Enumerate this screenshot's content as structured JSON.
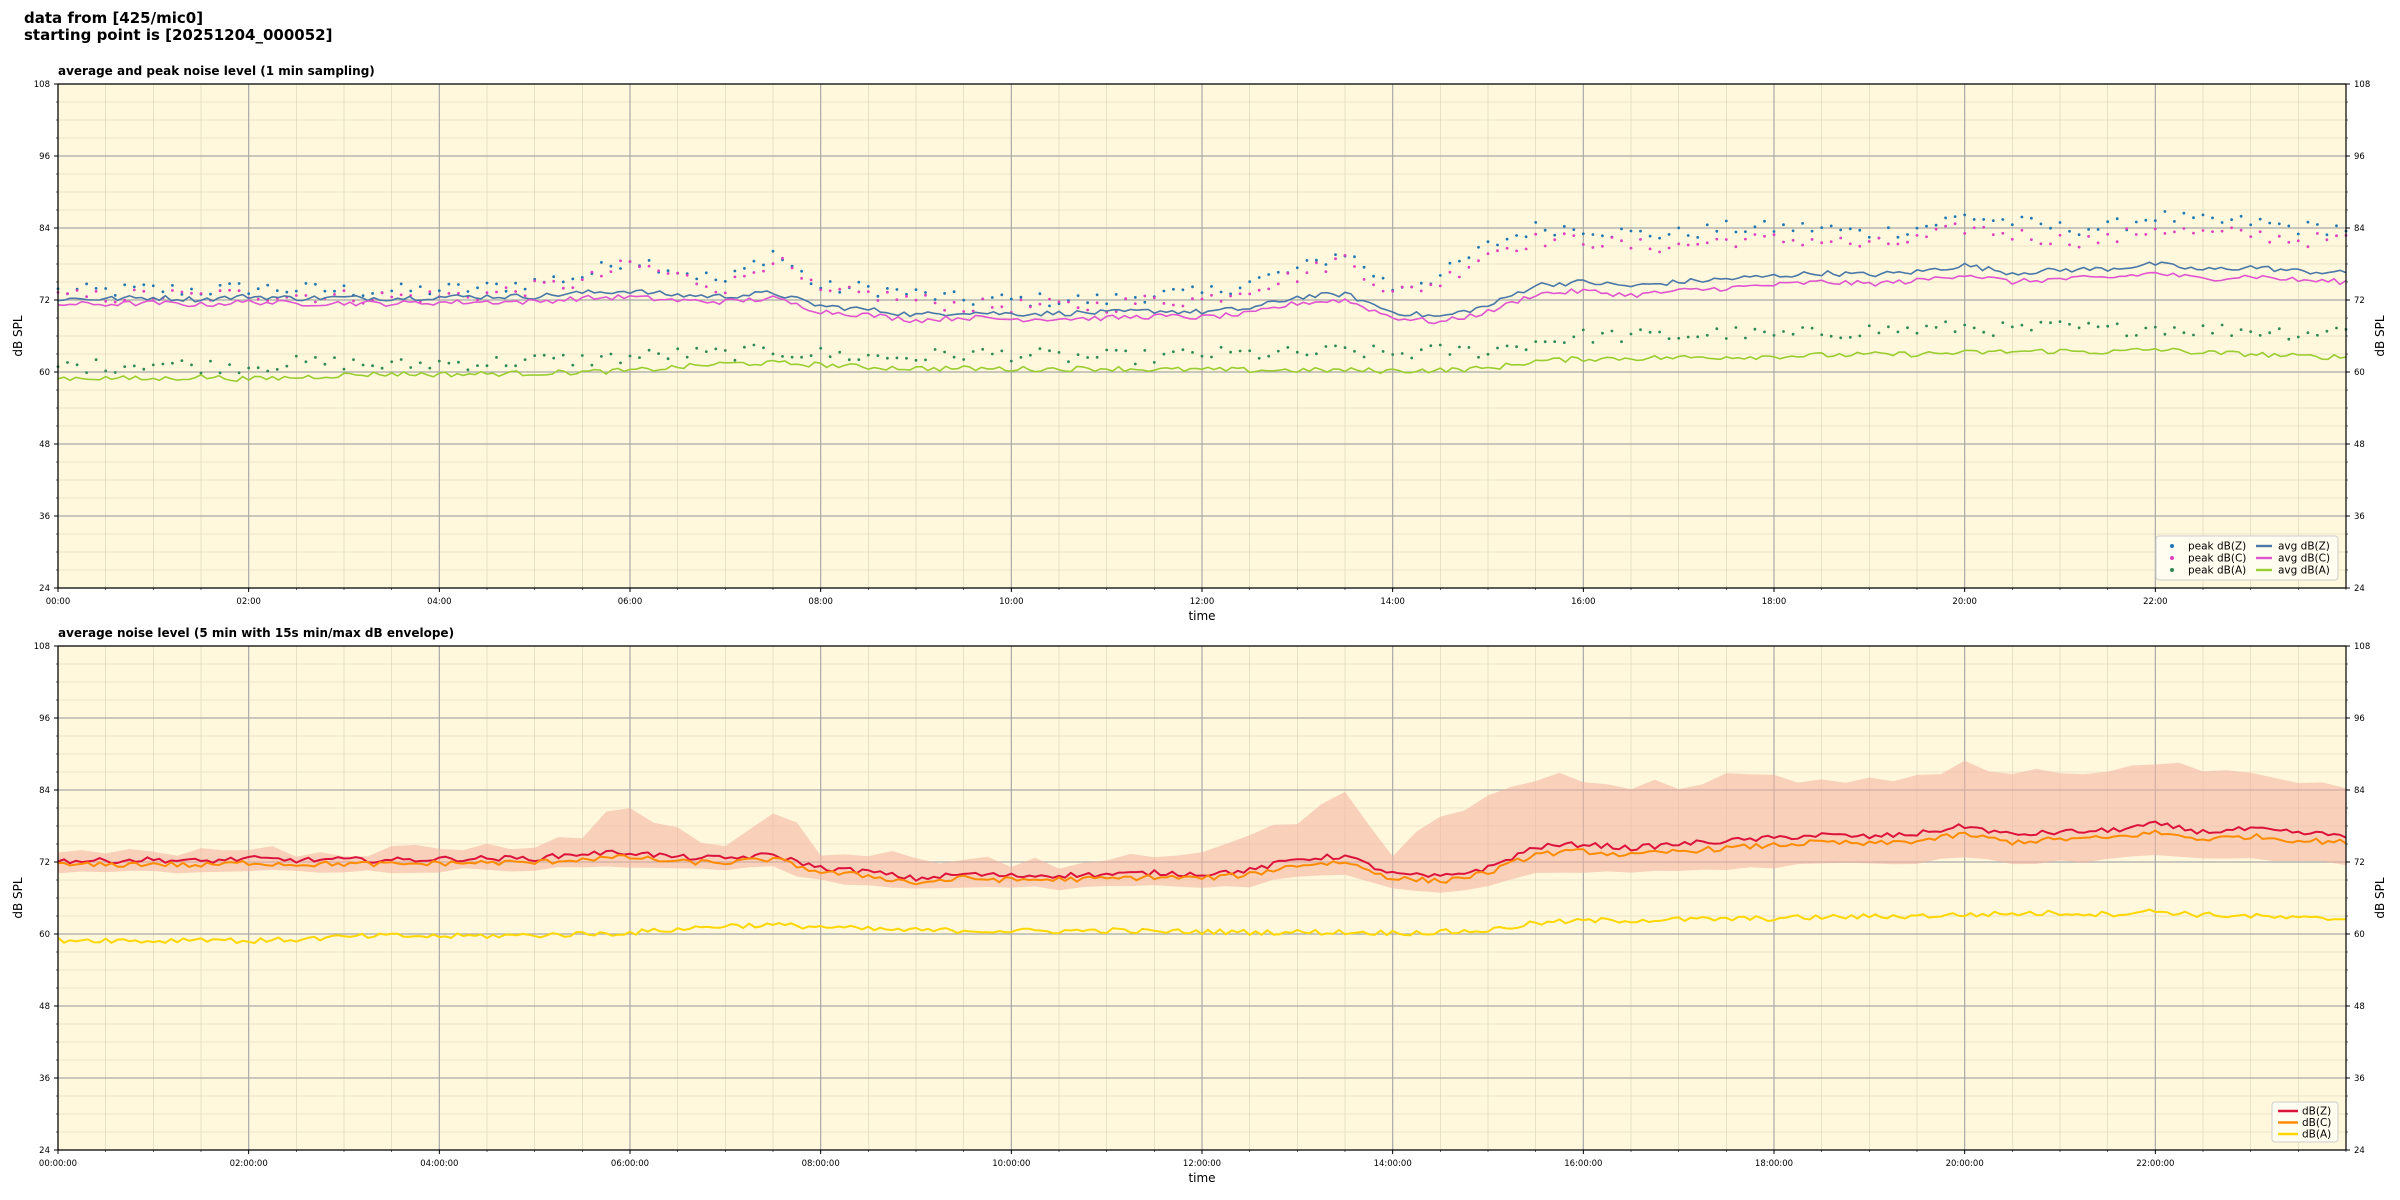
{
  "header": {
    "line1": "data from [425/mic0]",
    "line2": "starting point is [20251204_000052]"
  },
  "chart_data": [
    {
      "type": "line",
      "title": "average and peak noise level (1 min sampling)",
      "xlabel": "time",
      "ylabel": "dB SPL",
      "ylim": [
        24,
        108
      ],
      "yticks": [
        24,
        36,
        48,
        60,
        72,
        84,
        96,
        108
      ],
      "xlim_hours": [
        0,
        24
      ],
      "xticks": [
        "00:00",
        "02:00",
        "04:00",
        "06:00",
        "08:00",
        "10:00",
        "12:00",
        "14:00",
        "16:00",
        "18:00",
        "20:00",
        "22:00"
      ],
      "grid": true,
      "legend_position": "lower-right",
      "background": "#fff8dc",
      "hours": [
        0,
        0.5,
        1,
        1.5,
        2,
        2.5,
        3,
        3.5,
        4,
        4.5,
        5,
        5.5,
        6,
        6.5,
        7,
        7.5,
        8,
        8.5,
        9,
        9.5,
        10,
        10.5,
        11,
        11.5,
        12,
        12.5,
        13,
        13.5,
        14,
        14.5,
        15,
        15.5,
        16,
        16.5,
        17,
        17.5,
        18,
        18.5,
        19,
        19.5,
        20,
        20.5,
        21,
        21.5,
        22,
        22.5,
        23,
        23.5,
        24
      ],
      "series": [
        {
          "name": "peak dB(Z)",
          "kind": "points",
          "color": "#1f77b4",
          "values": [
            73.5,
            73.5,
            73.8,
            73.6,
            74,
            73.8,
            73.6,
            73.5,
            73.7,
            74,
            75,
            76,
            79,
            77,
            75,
            80,
            74,
            74,
            73,
            72,
            72,
            72,
            72,
            73,
            73,
            75,
            77,
            80,
            74,
            76,
            81,
            84,
            84,
            83,
            83,
            84,
            84,
            84,
            83,
            84,
            86,
            85,
            84,
            84,
            86,
            85,
            85,
            84,
            84
          ]
        },
        {
          "name": "peak dB(C)",
          "kind": "points",
          "color": "#e040c0",
          "values": [
            72.5,
            72.5,
            72.8,
            72.6,
            73,
            72.8,
            72.6,
            72.5,
            72.7,
            73,
            74,
            75,
            78,
            76,
            74,
            79,
            73,
            73,
            72,
            71,
            71,
            71,
            71,
            72,
            72,
            74,
            76,
            79,
            73,
            75,
            80,
            82,
            82,
            81,
            81,
            82,
            82,
            82,
            81,
            82,
            84,
            83,
            82,
            82,
            84,
            83,
            83,
            82,
            82
          ]
        },
        {
          "name": "peak dB(A)",
          "kind": "points",
          "color": "#2e8b57",
          "values": [
            61,
            61,
            61.5,
            61,
            61,
            61.5,
            61.5,
            61,
            61.5,
            61.5,
            62,
            62,
            62.5,
            63,
            63,
            63.5,
            63,
            62.5,
            62.5,
            63,
            63,
            62.5,
            62.5,
            62.5,
            63,
            63,
            63,
            63.5,
            63,
            63.5,
            63.5,
            65,
            66,
            66,
            66,
            66.5,
            66,
            66.5,
            67,
            67,
            67.5,
            67,
            67.5,
            67,
            67.5,
            67,
            67,
            66.5,
            67
          ]
        },
        {
          "name": "avg dB(Z)",
          "kind": "line",
          "color": "#4a78a8",
          "values": [
            72.2,
            72.2,
            72.4,
            72.1,
            72.6,
            72.3,
            72.4,
            72.3,
            72.5,
            72.6,
            72.6,
            73.2,
            73.5,
            72.8,
            72.6,
            73.2,
            71,
            70.4,
            69.5,
            70,
            69.7,
            69.8,
            69.9,
            70.2,
            70,
            70.6,
            72.5,
            73,
            70,
            69.2,
            71,
            74.5,
            75,
            74.3,
            75,
            75.5,
            76,
            76.5,
            76.2,
            76.7,
            77.8,
            76.5,
            77,
            77.2,
            78,
            77,
            77.5,
            76.8,
            76.5
          ]
        },
        {
          "name": "avg dB(C)",
          "kind": "line",
          "color": "#e055d0",
          "values": [
            71.3,
            71.3,
            71.5,
            71.2,
            71.7,
            71.4,
            71.5,
            71.4,
            71.6,
            71.7,
            71.7,
            72.3,
            72.5,
            71.9,
            71.7,
            72.3,
            70.1,
            69.5,
            68.6,
            69.1,
            68.8,
            68.9,
            69,
            69.3,
            69.1,
            69.7,
            71.5,
            72,
            69.1,
            68.3,
            70,
            73,
            73.5,
            72.8,
            73.5,
            74,
            74.5,
            75,
            74.7,
            75.2,
            76.3,
            75,
            75.5,
            75.7,
            76.5,
            75.5,
            76,
            75.3,
            75
          ]
        },
        {
          "name": "avg dB(A)",
          "kind": "line",
          "color": "#9acd32",
          "values": [
            59,
            59,
            58.8,
            59.2,
            58.8,
            59.1,
            59.5,
            59.7,
            59.6,
            59.7,
            59.8,
            60,
            60.2,
            60.8,
            61.4,
            61.5,
            61.2,
            60.8,
            60.6,
            60.6,
            60.5,
            60.5,
            60.6,
            60.4,
            60.4,
            60.3,
            60.3,
            60.3,
            60.2,
            60.3,
            60.6,
            61.8,
            62.2,
            62.3,
            62.4,
            62.5,
            62.6,
            62.8,
            62.9,
            63,
            63.2,
            63.4,
            63.5,
            63.3,
            63.8,
            63.2,
            63,
            62.6,
            62.5
          ]
        }
      ]
    },
    {
      "type": "line",
      "title": "average noise level (5 min with 15s min/max dB envelope)",
      "xlabel": "time",
      "ylabel": "dB SPL",
      "ylim": [
        24,
        108
      ],
      "yticks": [
        24,
        36,
        48,
        60,
        72,
        84,
        96,
        108
      ],
      "xlim_hours": [
        0,
        24
      ],
      "xticks": [
        "00:00:00",
        "02:00:00",
        "04:00:00",
        "06:00:00",
        "08:00:00",
        "10:00:00",
        "12:00:00",
        "14:00:00",
        "16:00:00",
        "18:00:00",
        "20:00:00",
        "22:00:00"
      ],
      "grid": true,
      "legend_position": "lower-right",
      "background": "#fff8dc",
      "hours": [
        0,
        0.5,
        1,
        1.5,
        2,
        2.5,
        3,
        3.5,
        4,
        4.5,
        5,
        5.5,
        6,
        6.5,
        7,
        7.5,
        8,
        8.5,
        9,
        9.5,
        10,
        10.5,
        11,
        11.5,
        12,
        12.5,
        13,
        13.5,
        14,
        14.5,
        15,
        15.5,
        16,
        16.5,
        17,
        17.5,
        18,
        18.5,
        19,
        19.5,
        20,
        20.5,
        21,
        21.5,
        22,
        22.5,
        23,
        23.5,
        24
      ],
      "envelope": {
        "color": "#f4b0a0",
        "max": [
          73.5,
          73.5,
          74,
          73.8,
          74,
          73.8,
          73.8,
          73.6,
          74,
          74.2,
          75,
          77,
          82,
          77,
          75,
          81,
          74,
          74,
          73,
          72,
          72,
          72,
          72,
          73,
          73,
          76,
          79,
          84,
          74,
          79,
          83,
          86,
          86,
          85,
          85,
          86,
          86,
          86,
          85,
          86,
          89,
          87,
          86,
          86,
          89,
          87,
          87,
          86,
          85
        ],
        "min": [
          70.5,
          70.5,
          70.5,
          70.3,
          70.6,
          70.4,
          70.4,
          70.3,
          70.5,
          70.6,
          70.6,
          71,
          71.3,
          70.8,
          70.6,
          71,
          68.8,
          68,
          67.5,
          67.8,
          67.5,
          67.6,
          67.7,
          68,
          67.8,
          68,
          69.5,
          69.8,
          67.5,
          67,
          68.2,
          70.5,
          70.5,
          70.2,
          70.8,
          71,
          71.3,
          71.8,
          71.5,
          72,
          72.5,
          71.8,
          72.2,
          72.3,
          73,
          72.2,
          72.6,
          72,
          71.8
        ]
      },
      "series": [
        {
          "name": "dB(Z)",
          "kind": "line",
          "color": "#dc143c",
          "values": [
            72.2,
            72.2,
            72.4,
            72.1,
            72.6,
            72.3,
            72.4,
            72.3,
            72.5,
            72.6,
            72.6,
            73.4,
            73.6,
            72.8,
            72.6,
            73.2,
            71,
            70.4,
            69.2,
            70,
            69.7,
            69.8,
            69.9,
            70.2,
            70,
            70.6,
            72.5,
            73,
            70,
            69.5,
            71,
            74.5,
            75,
            74.3,
            75,
            75.5,
            76,
            76.5,
            76.2,
            76.7,
            78,
            76.5,
            77,
            77.2,
            78.3,
            77,
            77.5,
            76.8,
            76.5
          ]
        },
        {
          "name": "dB(C)",
          "kind": "line",
          "color": "#ff8c00",
          "values": [
            71.5,
            71.5,
            71.7,
            71.4,
            71.9,
            71.6,
            71.7,
            71.6,
            71.8,
            71.9,
            71.9,
            72.5,
            72.8,
            72,
            71.9,
            72.5,
            70.3,
            69.7,
            68.5,
            69.3,
            69,
            69.1,
            69.2,
            69.5,
            69.3,
            69.9,
            71.5,
            72,
            69.3,
            68.8,
            70.2,
            73.3,
            73.8,
            73.1,
            73.8,
            74.3,
            74.8,
            75.3,
            75,
            75.5,
            76.6,
            75.3,
            75.8,
            76,
            76.9,
            75.8,
            76.3,
            75.6,
            75.3
          ]
        },
        {
          "name": "dB(A)",
          "kind": "line",
          "color": "#ffd700",
          "values": [
            59,
            59,
            58.8,
            59.2,
            58.8,
            59.1,
            59.5,
            59.7,
            59.6,
            59.7,
            59.8,
            60,
            60.2,
            60.8,
            61.4,
            61.5,
            61.2,
            60.8,
            60.6,
            60.6,
            60.5,
            60.5,
            60.6,
            60.4,
            60.4,
            60.3,
            60.3,
            60.3,
            60.2,
            60.3,
            60.6,
            61.8,
            62.2,
            62.3,
            62.4,
            62.5,
            62.6,
            62.8,
            62.9,
            63,
            63.2,
            63.4,
            63.5,
            63.3,
            63.8,
            63.2,
            63,
            62.6,
            62.5
          ]
        }
      ]
    }
  ]
}
